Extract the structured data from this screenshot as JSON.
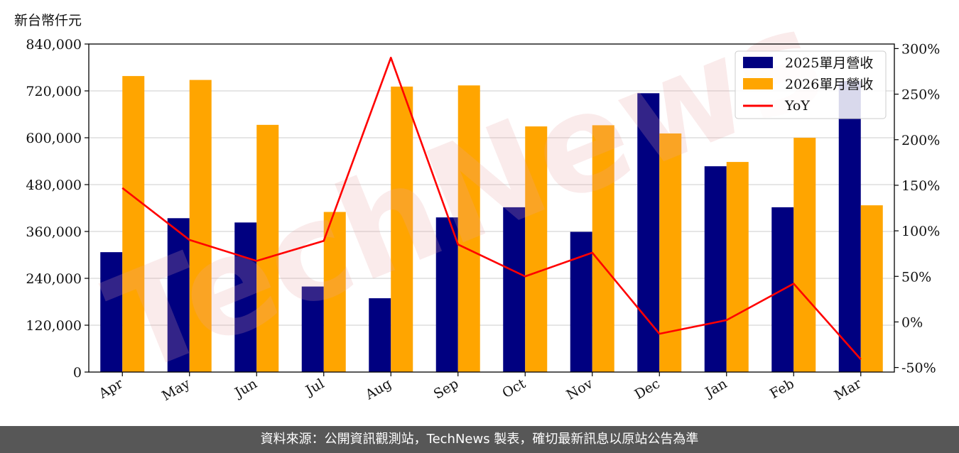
{
  "unit_label": "新台幣仟元",
  "footer_text": "資料來源：公開資訊觀測站，TechNews 製表，確切最新訊息以原站公告為準",
  "watermark_text": "TechNews",
  "chart_data": {
    "type": "bar",
    "categories": [
      "Apr",
      "May",
      "Jun",
      "Jul",
      "Aug",
      "Sep",
      "Oct",
      "Nov",
      "Dec",
      "Jan",
      "Feb",
      "Mar"
    ],
    "series": [
      {
        "name": "2025單月營收",
        "type": "bar",
        "color": "#000080",
        "values": [
          307000,
          394000,
          383000,
          219000,
          189000,
          396000,
          422000,
          359000,
          714000,
          527000,
          422000,
          745000
        ]
      },
      {
        "name": "2026單月營收",
        "type": "bar",
        "color": "#FFA500",
        "values": [
          758000,
          748000,
          633000,
          410000,
          731000,
          734000,
          629000,
          632000,
          611000,
          538000,
          600000,
          427000
        ]
      },
      {
        "name": "YoY",
        "type": "line",
        "axis": "right",
        "color": "#FF0000",
        "values": [
          147,
          90,
          67,
          89,
          290,
          85,
          50,
          76,
          -13,
          2,
          42,
          -41
        ]
      }
    ],
    "y_left": {
      "ylim": [
        0,
        840000
      ],
      "ticks": [
        "0",
        "120,000",
        "240,000",
        "360,000",
        "480,000",
        "600,000",
        "720,000",
        "840,000"
      ]
    },
    "y_right": {
      "ylim": [
        -55,
        305
      ],
      "tick_values": [
        -50,
        0,
        50,
        100,
        150,
        200,
        250,
        300
      ],
      "ticks": [
        "-50%",
        "0%",
        "50%",
        "100%",
        "150%",
        "200%",
        "250%",
        "300%"
      ]
    },
    "grid": true,
    "legend": "top-right"
  }
}
